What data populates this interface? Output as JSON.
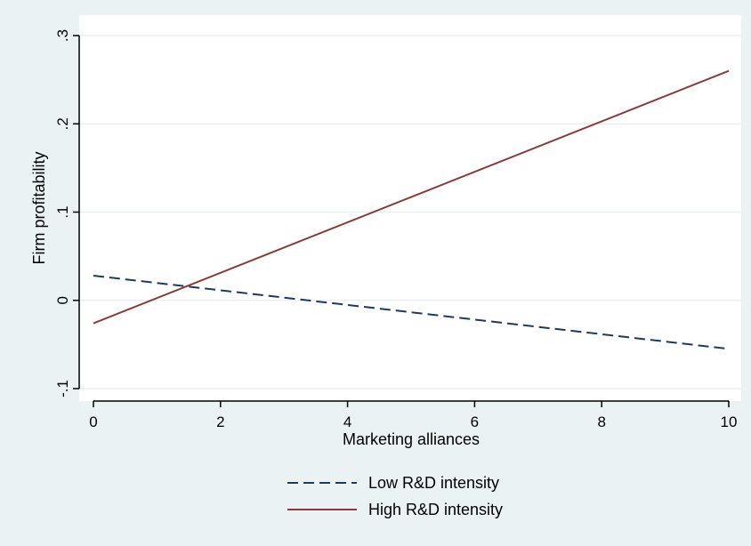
{
  "chart_data": {
    "type": "line",
    "title": "",
    "xlabel": "Marketing alliances",
    "ylabel": "Firm profitability",
    "xlim": [
      0,
      10
    ],
    "ylim": [
      -0.1,
      0.3
    ],
    "xticks": [
      {
        "value": 0,
        "label": "0"
      },
      {
        "value": 2,
        "label": "2"
      },
      {
        "value": 4,
        "label": "4"
      },
      {
        "value": 6,
        "label": "6"
      },
      {
        "value": 8,
        "label": "8"
      },
      {
        "value": 10,
        "label": "10"
      }
    ],
    "yticks": [
      {
        "value": -0.1,
        "label": "-.1"
      },
      {
        "value": 0,
        "label": "0"
      },
      {
        "value": 0.1,
        "label": ".1"
      },
      {
        "value": 0.2,
        "label": ".2"
      },
      {
        "value": 0.3,
        "label": ".3"
      }
    ],
    "grid": "horizontal",
    "legend_position": "bottom",
    "series": [
      {
        "name": "Low R&D intensity",
        "style": "dashed",
        "color": "#1f3a5f",
        "x": [
          0,
          10
        ],
        "y": [
          0.028,
          -0.055
        ]
      },
      {
        "name": "High R&D intensity",
        "style": "solid",
        "color": "#8b3a3a",
        "x": [
          0,
          10
        ],
        "y": [
          -0.026,
          0.26
        ]
      }
    ]
  },
  "colors": {
    "outer_background": "#eaf2f3",
    "plot_background": "#ffffff",
    "grid": "#e8eef0",
    "axis": "#000000"
  }
}
